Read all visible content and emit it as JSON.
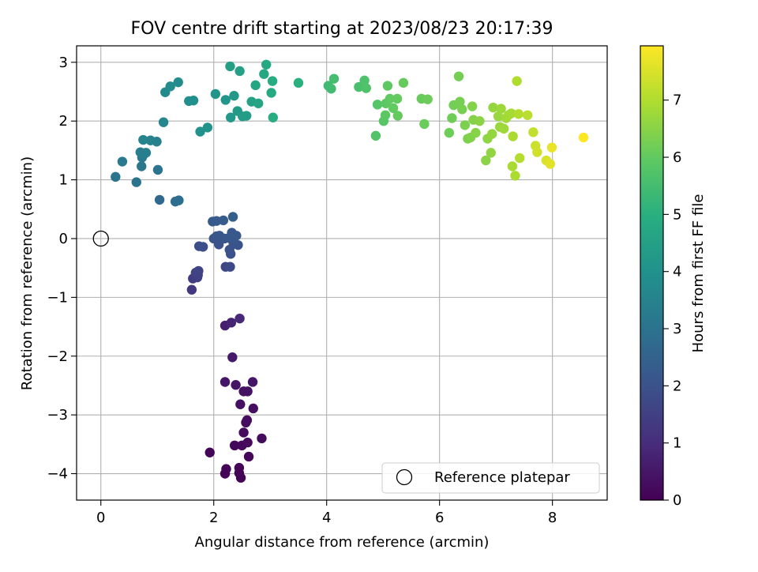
{
  "chart_data": {
    "type": "scatter",
    "title": "FOV centre drift starting at 2023/08/23 20:17:39",
    "xlabel": "Angular distance from reference (arcmin)",
    "ylabel": "Rotation from reference (arcmin)",
    "xlim": [
      -0.43,
      8.97
    ],
    "ylim": [
      -4.45,
      3.28
    ],
    "xticks": [
      0,
      2,
      4,
      6,
      8
    ],
    "yticks": [
      -4,
      -3,
      -2,
      -1,
      0,
      1,
      2,
      3
    ],
    "grid": true,
    "colormap": "viridis",
    "colorbar": {
      "label": "Hours from first FF file",
      "range": [
        0,
        7.95
      ],
      "ticks": [
        0,
        1,
        2,
        3,
        4,
        5,
        6,
        7
      ]
    },
    "legend": {
      "position": "lower-right",
      "entries": [
        "Reference platepar"
      ]
    },
    "reference_point": {
      "x": 0,
      "y": 0
    },
    "points": [
      {
        "x": 2.48,
        "y": -4.07,
        "h": 0.02
      },
      {
        "x": 2.2,
        "y": -4.0,
        "h": 0.04
      },
      {
        "x": 2.45,
        "y": -3.99,
        "h": 0.06
      },
      {
        "x": 2.45,
        "y": -3.9,
        "h": 0.08
      },
      {
        "x": 2.22,
        "y": -3.92,
        "h": 0.1
      },
      {
        "x": 1.93,
        "y": -3.64,
        "h": 0.12
      },
      {
        "x": 2.62,
        "y": -3.71,
        "h": 0.14
      },
      {
        "x": 2.37,
        "y": -3.52,
        "h": 0.16
      },
      {
        "x": 2.5,
        "y": -3.52,
        "h": 0.18
      },
      {
        "x": 2.6,
        "y": -3.47,
        "h": 0.2
      },
      {
        "x": 2.85,
        "y": -3.4,
        "h": 0.22
      },
      {
        "x": 2.53,
        "y": -3.3,
        "h": 0.24
      },
      {
        "x": 2.59,
        "y": -3.09,
        "h": 0.26
      },
      {
        "x": 2.57,
        "y": -3.13,
        "h": 0.28
      },
      {
        "x": 2.7,
        "y": -2.89,
        "h": 0.3
      },
      {
        "x": 2.47,
        "y": -2.82,
        "h": 0.33
      },
      {
        "x": 2.6,
        "y": -2.6,
        "h": 0.36
      },
      {
        "x": 2.53,
        "y": -2.6,
        "h": 0.39
      },
      {
        "x": 2.39,
        "y": -2.49,
        "h": 0.42
      },
      {
        "x": 2.69,
        "y": -2.44,
        "h": 0.45
      },
      {
        "x": 2.2,
        "y": -2.44,
        "h": 0.48
      },
      {
        "x": 2.33,
        "y": -2.02,
        "h": 0.55
      },
      {
        "x": 2.2,
        "y": -1.48,
        "h": 0.7
      },
      {
        "x": 2.31,
        "y": -1.43,
        "h": 0.8
      },
      {
        "x": 2.46,
        "y": -1.36,
        "h": 0.9
      },
      {
        "x": 1.61,
        "y": -0.87,
        "h": 1.3
      },
      {
        "x": 1.63,
        "y": -0.68,
        "h": 1.4
      },
      {
        "x": 1.71,
        "y": -0.66,
        "h": 1.45
      },
      {
        "x": 1.72,
        "y": -0.62,
        "h": 1.5
      },
      {
        "x": 1.68,
        "y": -0.58,
        "h": 1.55
      },
      {
        "x": 1.73,
        "y": -0.55,
        "h": 1.6
      },
      {
        "x": 2.21,
        "y": -0.48,
        "h": 1.7
      },
      {
        "x": 2.29,
        "y": -0.48,
        "h": 1.75
      },
      {
        "x": 1.74,
        "y": -0.13,
        "h": 1.85
      },
      {
        "x": 1.81,
        "y": -0.14,
        "h": 1.9
      },
      {
        "x": 2.3,
        "y": -0.26,
        "h": 1.95
      },
      {
        "x": 2.28,
        "y": -0.19,
        "h": 1.98
      },
      {
        "x": 2.09,
        "y": -0.1,
        "h": 2.0
      },
      {
        "x": 2.43,
        "y": -0.11,
        "h": 2.02
      },
      {
        "x": 2.35,
        "y": -0.09,
        "h": 2.04
      },
      {
        "x": 2.0,
        "y": 0.0,
        "h": 2.06
      },
      {
        "x": 2.05,
        "y": 0.04,
        "h": 2.08
      },
      {
        "x": 2.1,
        "y": 0.05,
        "h": 2.1
      },
      {
        "x": 2.19,
        "y": 0.0,
        "h": 2.12
      },
      {
        "x": 2.27,
        "y": 0.01,
        "h": 2.14
      },
      {
        "x": 2.35,
        "y": 0.02,
        "h": 2.16
      },
      {
        "x": 2.4,
        "y": 0.05,
        "h": 2.18
      },
      {
        "x": 2.32,
        "y": 0.1,
        "h": 2.2
      },
      {
        "x": 1.98,
        "y": 0.29,
        "h": 2.24
      },
      {
        "x": 2.05,
        "y": 0.3,
        "h": 2.28
      },
      {
        "x": 2.17,
        "y": 0.31,
        "h": 2.32
      },
      {
        "x": 2.34,
        "y": 0.37,
        "h": 2.36
      },
      {
        "x": 1.04,
        "y": 0.66,
        "h": 2.7
      },
      {
        "x": 1.32,
        "y": 0.63,
        "h": 2.8
      },
      {
        "x": 1.38,
        "y": 0.65,
        "h": 2.85
      },
      {
        "x": 0.63,
        "y": 0.96,
        "h": 3.0
      },
      {
        "x": 0.26,
        "y": 1.05,
        "h": 3.05
      },
      {
        "x": 1.01,
        "y": 1.17,
        "h": 3.1
      },
      {
        "x": 0.72,
        "y": 1.23,
        "h": 3.15
      },
      {
        "x": 0.38,
        "y": 1.31,
        "h": 3.2
      },
      {
        "x": 0.73,
        "y": 1.38,
        "h": 3.25
      },
      {
        "x": 0.75,
        "y": 1.42,
        "h": 3.3
      },
      {
        "x": 0.7,
        "y": 1.47,
        "h": 3.35
      },
      {
        "x": 0.8,
        "y": 1.46,
        "h": 3.4
      },
      {
        "x": 0.99,
        "y": 1.65,
        "h": 3.45
      },
      {
        "x": 0.88,
        "y": 1.67,
        "h": 3.5
      },
      {
        "x": 0.75,
        "y": 1.68,
        "h": 3.55
      },
      {
        "x": 1.11,
        "y": 1.98,
        "h": 3.65
      },
      {
        "x": 1.14,
        "y": 2.49,
        "h": 3.75
      },
      {
        "x": 1.23,
        "y": 2.59,
        "h": 3.8
      },
      {
        "x": 1.37,
        "y": 2.66,
        "h": 3.85
      },
      {
        "x": 1.56,
        "y": 2.34,
        "h": 3.9
      },
      {
        "x": 1.64,
        "y": 2.35,
        "h": 3.95
      },
      {
        "x": 1.76,
        "y": 1.82,
        "h": 4.0
      },
      {
        "x": 1.89,
        "y": 1.89,
        "h": 4.05
      },
      {
        "x": 2.03,
        "y": 2.46,
        "h": 4.1
      },
      {
        "x": 2.21,
        "y": 2.36,
        "h": 4.15
      },
      {
        "x": 2.36,
        "y": 2.43,
        "h": 4.2
      },
      {
        "x": 2.3,
        "y": 2.06,
        "h": 4.25
      },
      {
        "x": 2.42,
        "y": 2.17,
        "h": 4.3
      },
      {
        "x": 2.51,
        "y": 2.08,
        "h": 4.35
      },
      {
        "x": 2.58,
        "y": 2.09,
        "h": 4.4
      },
      {
        "x": 2.29,
        "y": 2.93,
        "h": 4.45
      },
      {
        "x": 2.46,
        "y": 2.85,
        "h": 4.5
      },
      {
        "x": 2.67,
        "y": 2.33,
        "h": 4.55
      },
      {
        "x": 2.79,
        "y": 2.3,
        "h": 4.6
      },
      {
        "x": 2.74,
        "y": 2.61,
        "h": 4.65
      },
      {
        "x": 2.89,
        "y": 2.8,
        "h": 4.7
      },
      {
        "x": 2.93,
        "y": 2.96,
        "h": 4.75
      },
      {
        "x": 3.02,
        "y": 2.48,
        "h": 4.8
      },
      {
        "x": 3.04,
        "y": 2.68,
        "h": 4.85
      },
      {
        "x": 3.05,
        "y": 2.06,
        "h": 4.9
      },
      {
        "x": 3.5,
        "y": 2.65,
        "h": 5.0
      },
      {
        "x": 4.03,
        "y": 2.6,
        "h": 5.4
      },
      {
        "x": 4.08,
        "y": 2.55,
        "h": 5.45
      },
      {
        "x": 4.13,
        "y": 2.72,
        "h": 5.5
      },
      {
        "x": 4.57,
        "y": 2.58,
        "h": 5.6
      },
      {
        "x": 4.67,
        "y": 2.69,
        "h": 5.65
      },
      {
        "x": 4.7,
        "y": 2.56,
        "h": 5.7
      },
      {
        "x": 4.87,
        "y": 1.75,
        "h": 5.75
      },
      {
        "x": 4.9,
        "y": 2.28,
        "h": 5.8
      },
      {
        "x": 5.01,
        "y": 2.0,
        "h": 5.85
      },
      {
        "x": 5.04,
        "y": 2.1,
        "h": 5.88
      },
      {
        "x": 5.05,
        "y": 2.3,
        "h": 5.91
      },
      {
        "x": 5.08,
        "y": 2.6,
        "h": 5.94
      },
      {
        "x": 5.12,
        "y": 2.38,
        "h": 5.97
      },
      {
        "x": 5.18,
        "y": 2.22,
        "h": 6.0
      },
      {
        "x": 5.25,
        "y": 2.38,
        "h": 6.02
      },
      {
        "x": 5.26,
        "y": 2.09,
        "h": 6.04
      },
      {
        "x": 5.36,
        "y": 2.65,
        "h": 6.06
      },
      {
        "x": 5.68,
        "y": 2.38,
        "h": 6.08
      },
      {
        "x": 5.73,
        "y": 1.95,
        "h": 6.1
      },
      {
        "x": 5.79,
        "y": 2.37,
        "h": 6.12
      },
      {
        "x": 6.17,
        "y": 1.8,
        "h": 6.15
      },
      {
        "x": 6.22,
        "y": 2.05,
        "h": 6.18
      },
      {
        "x": 6.25,
        "y": 2.27,
        "h": 6.21
      },
      {
        "x": 6.34,
        "y": 2.76,
        "h": 6.24
      },
      {
        "x": 6.36,
        "y": 2.33,
        "h": 6.27
      },
      {
        "x": 6.4,
        "y": 2.2,
        "h": 6.3
      },
      {
        "x": 6.45,
        "y": 1.93,
        "h": 6.33
      },
      {
        "x": 6.5,
        "y": 1.7,
        "h": 6.36
      },
      {
        "x": 6.55,
        "y": 1.72,
        "h": 6.39
      },
      {
        "x": 6.58,
        "y": 2.25,
        "h": 6.42
      },
      {
        "x": 6.6,
        "y": 2.02,
        "h": 6.45
      },
      {
        "x": 6.64,
        "y": 1.8,
        "h": 6.48
      },
      {
        "x": 6.71,
        "y": 2.0,
        "h": 6.51
      },
      {
        "x": 6.82,
        "y": 1.33,
        "h": 6.54
      },
      {
        "x": 6.85,
        "y": 1.7,
        "h": 6.57
      },
      {
        "x": 6.91,
        "y": 1.46,
        "h": 6.6
      },
      {
        "x": 6.93,
        "y": 1.78,
        "h": 6.63
      },
      {
        "x": 6.95,
        "y": 2.23,
        "h": 6.66
      },
      {
        "x": 7.04,
        "y": 2.08,
        "h": 6.69
      },
      {
        "x": 7.07,
        "y": 1.9,
        "h": 6.72
      },
      {
        "x": 7.09,
        "y": 2.21,
        "h": 6.75
      },
      {
        "x": 7.14,
        "y": 1.87,
        "h": 6.78
      },
      {
        "x": 7.18,
        "y": 2.05,
        "h": 6.81
      },
      {
        "x": 7.22,
        "y": 2.1,
        "h": 6.84
      },
      {
        "x": 7.27,
        "y": 2.13,
        "h": 6.87
      },
      {
        "x": 7.29,
        "y": 1.23,
        "h": 6.9
      },
      {
        "x": 7.3,
        "y": 1.74,
        "h": 6.93
      },
      {
        "x": 7.34,
        "y": 1.07,
        "h": 6.96
      },
      {
        "x": 7.37,
        "y": 2.68,
        "h": 6.99
      },
      {
        "x": 7.4,
        "y": 2.12,
        "h": 7.02
      },
      {
        "x": 7.42,
        "y": 1.37,
        "h": 7.05
      },
      {
        "x": 7.56,
        "y": 2.1,
        "h": 7.1
      },
      {
        "x": 7.66,
        "y": 1.81,
        "h": 7.2
      },
      {
        "x": 7.7,
        "y": 1.58,
        "h": 7.3
      },
      {
        "x": 7.73,
        "y": 1.47,
        "h": 7.4
      },
      {
        "x": 7.89,
        "y": 1.33,
        "h": 7.5
      },
      {
        "x": 7.96,
        "y": 1.27,
        "h": 7.6
      },
      {
        "x": 7.99,
        "y": 1.55,
        "h": 7.7
      },
      {
        "x": 8.55,
        "y": 1.72,
        "h": 7.95
      }
    ]
  }
}
